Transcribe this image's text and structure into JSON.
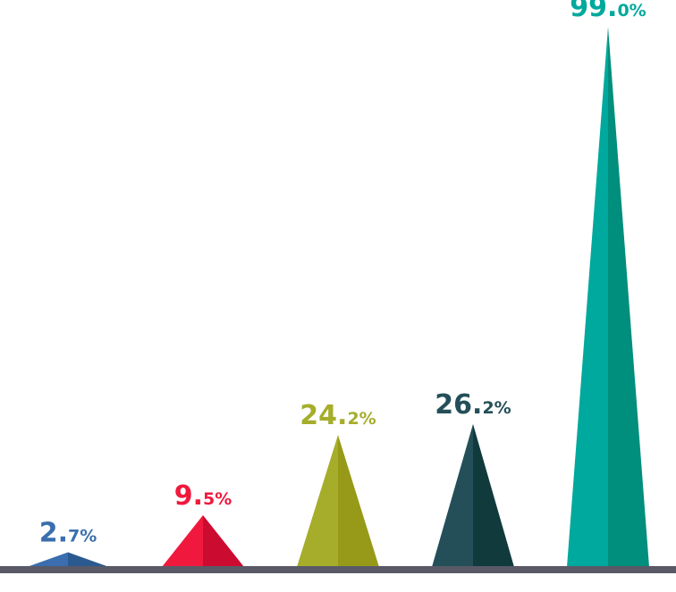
{
  "chart_data": {
    "type": "bar",
    "shape": "triangle",
    "ylim": [
      0,
      100
    ],
    "baseline_color": "#595967",
    "bars": [
      {
        "value": 2.7,
        "label_int": "2.",
        "label_dec": "7%",
        "color_light": "#3a6eae",
        "color_dark": "#2a5a8f"
      },
      {
        "value": 9.5,
        "label_int": "9.",
        "label_dec": "5%",
        "color_light": "#f0193d",
        "color_dark": "#cc0b31"
      },
      {
        "value": 24.2,
        "label_int": "24.",
        "label_dec": "2%",
        "color_light": "#a6ad2a",
        "color_dark": "#979a18"
      },
      {
        "value": 26.2,
        "label_int": "26.",
        "label_dec": "2%",
        "color_light": "#244f58",
        "color_dark": "#113a3d"
      },
      {
        "value": 99.0,
        "label_int": "99.",
        "label_dec": "0%",
        "color_light": "#00a99d",
        "color_dark": "#008e7d"
      }
    ]
  }
}
